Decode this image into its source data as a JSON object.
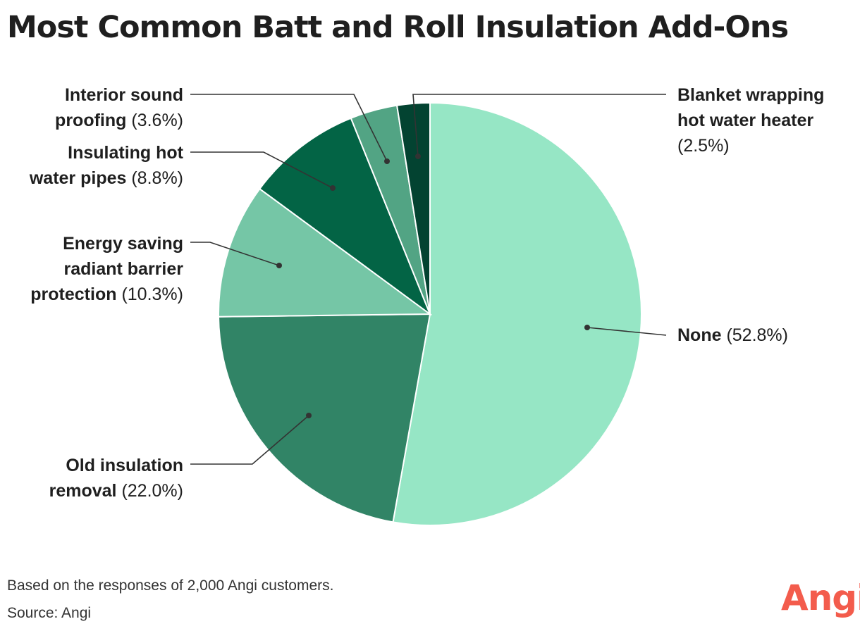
{
  "chart_data": {
    "type": "pie",
    "title": "Most Common Batt and Roll Insulation Add-Ons",
    "slices": [
      {
        "label": "None",
        "percent_text": "(52.8%)",
        "value": 52.8,
        "color": "#96e6c5"
      },
      {
        "label": "Old insulation removal",
        "percent_text": "(22.0%)",
        "value": 22.0,
        "color": "#318466"
      },
      {
        "label": "Energy saving radiant barrier protection",
        "percent_text": "(10.3%)",
        "value": 10.3,
        "color": "#75c6a6"
      },
      {
        "label": "Insulating hot water pipes",
        "percent_text": "(8.8%)",
        "value": 8.8,
        "color": "#036445"
      },
      {
        "label": "Interior sound proofing",
        "percent_text": "(3.6%)",
        "value": 3.6,
        "color": "#52a484"
      },
      {
        "label": "Blanket wrapping hot water heater",
        "percent_text": "(2.5%)",
        "value": 2.5,
        "color": "#034331"
      }
    ],
    "order": "clockwise from top",
    "label_lines": {
      "none": [
        "None"
      ],
      "old": [
        "Old insulation",
        "removal"
      ],
      "energy": [
        "Energy saving",
        "radiant barrier",
        "protection"
      ],
      "pipes": [
        "Insulating hot",
        "water pipes"
      ],
      "sound": [
        "Interior sound",
        "proofing"
      ],
      "blanket": [
        "Blanket wrapping",
        "hot water heater"
      ]
    }
  },
  "footer": {
    "note": "Based on the responses of 2,000 Angi customers.",
    "source": "Source: Angi"
  },
  "brand": {
    "logo_text": "Angi",
    "logo_color": "#f35c4c"
  },
  "colors": {
    "leader_line": "#333333",
    "slice_border": "#ffffff"
  }
}
